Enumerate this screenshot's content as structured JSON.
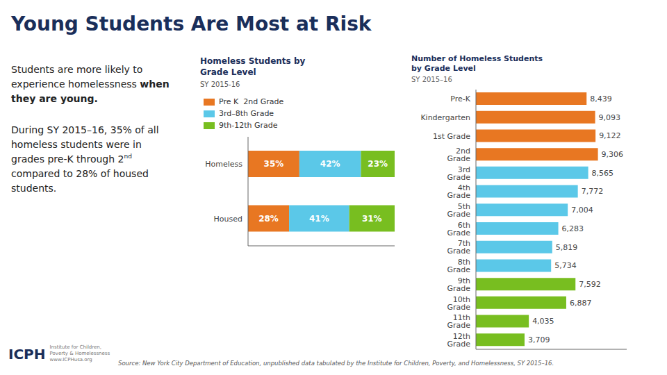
{
  "chart_data": [
    {
      "type": "bar",
      "title": "Homeless Students by\nGrade Level",
      "subtitle": "SY 2015-16",
      "orientation": "horizontal",
      "stacked": true,
      "data_labels": true,
      "tick_labels": "y",
      "legend": "top",
      "categories": [
        "Homeless",
        "Housed"
      ],
      "xlim": [
        0,
        100
      ],
      "series": [
        {
          "name": "Pre K  2nd Grade",
          "color": "#e87722",
          "values": [
            35,
            28
          ],
          "value_labels": [
            "35%",
            "28%"
          ]
        },
        {
          "name": "3rd–8th Grade",
          "color": "#5bc8e8",
          "values": [
            42,
            41
          ],
          "value_labels": [
            "42%",
            "41%"
          ]
        },
        {
          "name": "9th-12th Grade",
          "color": "#78be20",
          "values": [
            23,
            31
          ],
          "value_labels": [
            "23%",
            "31%"
          ]
        }
      ],
      "annotations": [
        "Young Students Are Most at Risk",
        "Students are more likely to\nexperience homelessness",
        "when they are young.",
        "During SY 2015–16, 35% of all\nhomeless students were in\ngrades pre-K through 2",
        "nd",
        "compared to 28% of housed\nstudents.",
        "Source: New York City Department of Education, unpublished data tabulated by the Institute for Children, Poverty, and Homelessness, SY 2015–16.",
        "ICPH",
        "Institute for Children,\nPoverty & Homelessness\nwww.ICPHusa.org"
      ]
    },
    {
      "type": "bar",
      "title": "Number of Homeless Students\nby Grade Level",
      "subtitle": "SY 2015–16",
      "orientation": "horizontal",
      "data_labels": true,
      "tick_labels": "y",
      "categories": [
        "Pre-K",
        "Kindergarten",
        "1st Grade",
        "2nd Grade",
        "3rd Grade",
        "4th Grade",
        "5th Grade",
        "6th Grade",
        "7th Grade",
        "8th Grade",
        "9th Grade",
        "10th Grade",
        "11th Grade",
        "12th Grade"
      ],
      "values": [
        8439,
        9093,
        9122,
        9306,
        8565,
        7772,
        7004,
        6283,
        5819,
        5734,
        7592,
        6887,
        4035,
        3709
      ],
      "value_labels": [
        "8,439",
        "9,093",
        "9,122",
        "9,306",
        "8,565",
        "7,772",
        "7,004",
        "6,283",
        "5,819",
        "5,734",
        "7,592",
        "6,887",
        "4,035",
        "3,709"
      ],
      "colors": [
        "#e87722",
        "#e87722",
        "#e87722",
        "#e87722",
        "#5bc8e8",
        "#5bc8e8",
        "#5bc8e8",
        "#5bc8e8",
        "#5bc8e8",
        "#5bc8e8",
        "#78be20",
        "#78be20",
        "#78be20",
        "#78be20"
      ],
      "xlim": [
        0,
        11500
      ]
    }
  ]
}
